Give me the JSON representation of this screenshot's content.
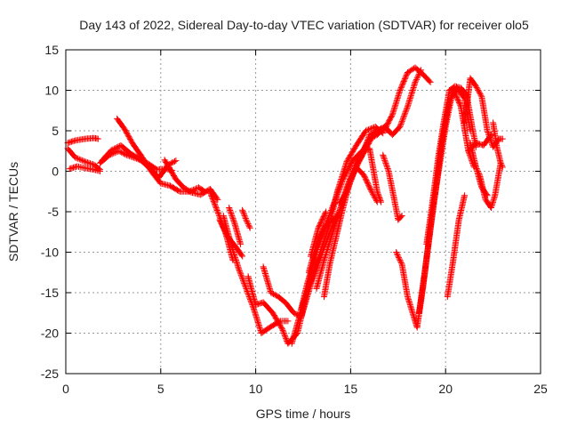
{
  "chart_data": {
    "type": "scatter",
    "title": "Day 143 of 2022, Sidereal Day-to-day VTEC variation (SDTVAR) for receiver olo5",
    "xlabel": "GPS time / hours",
    "ylabel": "SDTVAR / TECUs",
    "xlim": [
      0,
      25
    ],
    "ylim": [
      -25,
      15
    ],
    "xticks": [
      0,
      5,
      10,
      15,
      20,
      25
    ],
    "yticks": [
      -25,
      -20,
      -15,
      -10,
      -5,
      0,
      5,
      10,
      15
    ],
    "grid": true,
    "marker": "+",
    "color": "#ff0000",
    "series": [
      {
        "points": [
          [
            0.1,
            3.5
          ],
          [
            0.5,
            3.8
          ],
          [
            1.0,
            4.0
          ],
          [
            1.5,
            4.1
          ],
          [
            1.7,
            4.0
          ]
        ]
      },
      {
        "points": [
          [
            0.1,
            2.8
          ],
          [
            0.5,
            1.7
          ],
          [
            1.0,
            1.2
          ],
          [
            1.5,
            0.8
          ],
          [
            1.8,
            0.2
          ]
        ]
      },
      {
        "points": [
          [
            0.2,
            0.3
          ],
          [
            0.6,
            0.6
          ],
          [
            1.0,
            0.4
          ],
          [
            1.5,
            0.2
          ],
          [
            1.8,
            0.0
          ]
        ]
      },
      {
        "points": [
          [
            1.8,
            1.0
          ],
          [
            2.3,
            2.0
          ],
          [
            2.8,
            2.5
          ],
          [
            3.2,
            2.0
          ],
          [
            3.8,
            1.5
          ],
          [
            4.3,
            1.0
          ],
          [
            4.8,
            0.2
          ],
          [
            5.3,
            0.3
          ],
          [
            5.6,
            0.1
          ]
        ]
      },
      {
        "points": [
          [
            2.7,
            6.5
          ],
          [
            3.1,
            5.2
          ],
          [
            3.5,
            3.5
          ],
          [
            4.0,
            1.8
          ],
          [
            4.5,
            0.0
          ],
          [
            5.0,
            -1.5
          ],
          [
            5.5,
            -1.8
          ],
          [
            6.0,
            -2.5
          ],
          [
            6.5,
            -2.5
          ],
          [
            7.0,
            -2.0
          ],
          [
            7.3,
            -2.5
          ]
        ]
      },
      {
        "points": [
          [
            1.9,
            1.3
          ],
          [
            2.4,
            2.6
          ],
          [
            2.9,
            3.2
          ],
          [
            3.4,
            2.2
          ],
          [
            3.9,
            1.5
          ],
          [
            4.4,
            0.4
          ],
          [
            4.9,
            -0.8
          ],
          [
            5.4,
            0.8
          ],
          [
            5.8,
            1.3
          ]
        ]
      },
      {
        "points": [
          [
            5.2,
            1.4
          ],
          [
            5.5,
            0.2
          ],
          [
            5.8,
            -1.0
          ],
          [
            6.2,
            -2.0
          ],
          [
            6.6,
            -2.6
          ],
          [
            7.1,
            -2.9
          ],
          [
            7.6,
            -2.2
          ],
          [
            8.0,
            -3.5
          ]
        ]
      },
      {
        "points": [
          [
            7.6,
            -2.6
          ],
          [
            8.0,
            -5.0
          ],
          [
            8.4,
            -7.5
          ],
          [
            8.8,
            -11.0
          ]
        ]
      },
      {
        "points": [
          [
            8.1,
            -6.0
          ],
          [
            8.5,
            -8.0
          ],
          [
            9.0,
            -9.5
          ],
          [
            9.3,
            -10.5
          ]
        ]
      },
      {
        "points": [
          [
            8.3,
            -5.5
          ],
          [
            8.7,
            -9.0
          ],
          [
            9.1,
            -12.0
          ],
          [
            9.5,
            -14.5
          ],
          [
            9.9,
            -17.0
          ],
          [
            10.3,
            -20.0
          ],
          [
            10.8,
            -19.2
          ],
          [
            11.3,
            -18.5
          ],
          [
            11.7,
            -18.5
          ]
        ]
      },
      {
        "points": [
          [
            9.3,
            -4.8
          ],
          [
            9.5,
            -6.0
          ],
          [
            9.7,
            -7.0
          ]
        ]
      },
      {
        "points": [
          [
            8.6,
            -4.5
          ],
          [
            8.9,
            -6.5
          ],
          [
            9.2,
            -9.0
          ]
        ]
      },
      {
        "points": [
          [
            9.6,
            -13.0
          ],
          [
            10.0,
            -16.5
          ],
          [
            10.4,
            -16.2
          ],
          [
            10.9,
            -17.5
          ],
          [
            11.4,
            -19.5
          ],
          [
            11.7,
            -21.3
          ],
          [
            12.2,
            -20.0
          ],
          [
            12.7,
            -15.0
          ],
          [
            13.2,
            -9.5
          ],
          [
            13.7,
            -6.5
          ]
        ]
      },
      {
        "points": [
          [
            10.4,
            -11.8
          ],
          [
            10.8,
            -15.0
          ],
          [
            11.2,
            -15.5
          ],
          [
            11.6,
            -16.3
          ],
          [
            12.0,
            -17.5
          ],
          [
            12.4,
            -18.0
          ],
          [
            12.9,
            -14.0
          ],
          [
            13.4,
            -10.0
          ],
          [
            13.9,
            -6.5
          ],
          [
            14.3,
            -2.5
          ],
          [
            14.8,
            1.2
          ],
          [
            15.3,
            3.2
          ],
          [
            15.8,
            5.0
          ],
          [
            16.3,
            5.5
          ],
          [
            16.7,
            4.7
          ]
        ]
      },
      {
        "points": [
          [
            11.9,
            -21.3
          ],
          [
            12.3,
            -18.0
          ],
          [
            12.7,
            -14.0
          ],
          [
            13.2,
            -10.0
          ],
          [
            13.7,
            -6.5
          ],
          [
            14.2,
            -3.5
          ],
          [
            14.6,
            -1.0
          ],
          [
            15.1,
            1.3
          ],
          [
            15.6,
            2.5
          ],
          [
            16.0,
            2.8
          ],
          [
            16.4,
            -2.5
          ],
          [
            16.6,
            -3.8
          ]
        ]
      },
      {
        "points": [
          [
            12.4,
            -17.0
          ],
          [
            12.8,
            -14.2
          ],
          [
            13.2,
            -12.0
          ],
          [
            13.6,
            -9.5
          ],
          [
            14.0,
            -7.0
          ],
          [
            14.5,
            -4.5
          ],
          [
            14.9,
            -1.5
          ],
          [
            15.3,
            0.5
          ],
          [
            15.7,
            -0.5
          ],
          [
            16.1,
            -2.5
          ],
          [
            16.4,
            -3.8
          ]
        ]
      },
      {
        "points": [
          [
            12.8,
            -12.5
          ],
          [
            13.2,
            -9.0
          ],
          [
            13.6,
            -7.0
          ],
          [
            14.0,
            -6.0
          ],
          [
            14.4,
            -5.5
          ]
        ]
      },
      {
        "points": [
          [
            13.2,
            -14.5
          ],
          [
            13.6,
            -11.0
          ],
          [
            14.0,
            -8.0
          ],
          [
            14.4,
            -5.0
          ],
          [
            14.8,
            -2.0
          ],
          [
            15.2,
            0.5
          ],
          [
            15.6,
            2.0
          ],
          [
            16.0,
            4.5
          ],
          [
            16.4,
            5.0
          ],
          [
            16.8,
            5.5
          ]
        ]
      },
      {
        "points": [
          [
            12.9,
            -10.5
          ],
          [
            13.3,
            -7.0
          ],
          [
            13.7,
            -5.0
          ]
        ]
      },
      {
        "points": [
          [
            13.6,
            -15.5
          ],
          [
            13.9,
            -11.5
          ],
          [
            14.3,
            -7.5
          ],
          [
            14.6,
            -4.5
          ],
          [
            15.0,
            -1.0
          ],
          [
            15.4,
            1.0
          ],
          [
            15.8,
            2.8
          ],
          [
            16.2,
            4.5
          ],
          [
            16.6,
            5.3
          ],
          [
            17.0,
            5.0
          ]
        ]
      },
      {
        "points": [
          [
            14.4,
            -4.0
          ],
          [
            14.8,
            -2.5
          ],
          [
            15.2,
            0.0
          ],
          [
            15.6,
            2.3
          ],
          [
            16.0,
            4.0
          ],
          [
            16.4,
            4.5
          ],
          [
            16.8,
            5.5
          ],
          [
            17.2,
            4.5
          ],
          [
            17.6,
            5.5
          ],
          [
            18.0,
            8.0
          ],
          [
            18.4,
            11.0
          ],
          [
            18.7,
            12.5
          ]
        ]
      },
      {
        "points": [
          [
            16.8,
            5.2
          ],
          [
            17.2,
            7.0
          ],
          [
            17.6,
            10.0
          ],
          [
            18.0,
            12.2
          ],
          [
            18.4,
            12.8
          ],
          [
            18.8,
            12.0
          ],
          [
            19.2,
            11.0
          ]
        ]
      },
      {
        "points": [
          [
            16.7,
            2.0
          ],
          [
            17.0,
            0.0
          ],
          [
            17.3,
            -3.5
          ],
          [
            17.5,
            -6.0
          ],
          [
            17.7,
            -5.5
          ]
        ]
      },
      {
        "points": [
          [
            17.4,
            -10.0
          ],
          [
            17.7,
            -11.5
          ],
          [
            18.0,
            -15.5
          ],
          [
            18.2,
            -17.0
          ],
          [
            18.5,
            -19.3
          ],
          [
            18.8,
            -14.5
          ],
          [
            19.1,
            -9.0
          ],
          [
            19.4,
            -3.5
          ],
          [
            19.7,
            1.0
          ],
          [
            20.0,
            5.5
          ],
          [
            20.3,
            9.0
          ],
          [
            20.6,
            10.3
          ],
          [
            21.0,
            9.0
          ],
          [
            21.3,
            5.0
          ]
        ]
      },
      {
        "points": [
          [
            18.6,
            -17.5
          ],
          [
            18.9,
            -12.5
          ],
          [
            19.2,
            -7.0
          ],
          [
            19.5,
            -2.0
          ],
          [
            19.8,
            3.5
          ],
          [
            20.1,
            7.5
          ],
          [
            20.4,
            10.2
          ],
          [
            20.8,
            8.0
          ],
          [
            21.2,
            2.5
          ],
          [
            21.5,
            0.5
          ]
        ]
      },
      {
        "points": [
          [
            19.0,
            -9.0
          ],
          [
            19.3,
            -4.0
          ],
          [
            19.6,
            1.5
          ],
          [
            19.9,
            6.0
          ],
          [
            20.2,
            10.0
          ],
          [
            20.5,
            10.5
          ],
          [
            20.8,
            10.3
          ],
          [
            21.1,
            9.5
          ],
          [
            21.4,
            5.5
          ],
          [
            21.6,
            3.0
          ]
        ]
      },
      {
        "points": [
          [
            20.1,
            -15.5
          ],
          [
            20.4,
            -11.0
          ],
          [
            20.7,
            -6.0
          ],
          [
            21.0,
            -3.0
          ]
        ]
      },
      {
        "points": [
          [
            21.0,
            6.0
          ],
          [
            21.3,
            11.5
          ],
          [
            21.6,
            10.5
          ],
          [
            21.9,
            9.2
          ],
          [
            22.2,
            5.0
          ],
          [
            22.5,
            3.0
          ],
          [
            22.8,
            4.0
          ],
          [
            23.0,
            4.0
          ]
        ]
      },
      {
        "points": [
          [
            21.3,
            3.5
          ],
          [
            21.6,
            0.5
          ],
          [
            21.9,
            -2.0
          ],
          [
            22.2,
            -3.0
          ]
        ]
      },
      {
        "points": [
          [
            21.5,
            1.0
          ],
          [
            21.8,
            -0.5
          ],
          [
            22.1,
            -3.5
          ],
          [
            22.4,
            -4.5
          ],
          [
            22.6,
            -3.0
          ],
          [
            22.9,
            1.0
          ]
        ]
      },
      {
        "points": [
          [
            22.5,
            6.0
          ],
          [
            22.7,
            3.0
          ],
          [
            22.9,
            1.0
          ],
          [
            23.0,
            0.5
          ]
        ]
      },
      {
        "points": [
          [
            21.2,
            2.5
          ],
          [
            21.6,
            3.5
          ],
          [
            22.0,
            3.2
          ],
          [
            22.4,
            4.5
          ]
        ]
      }
    ]
  }
}
